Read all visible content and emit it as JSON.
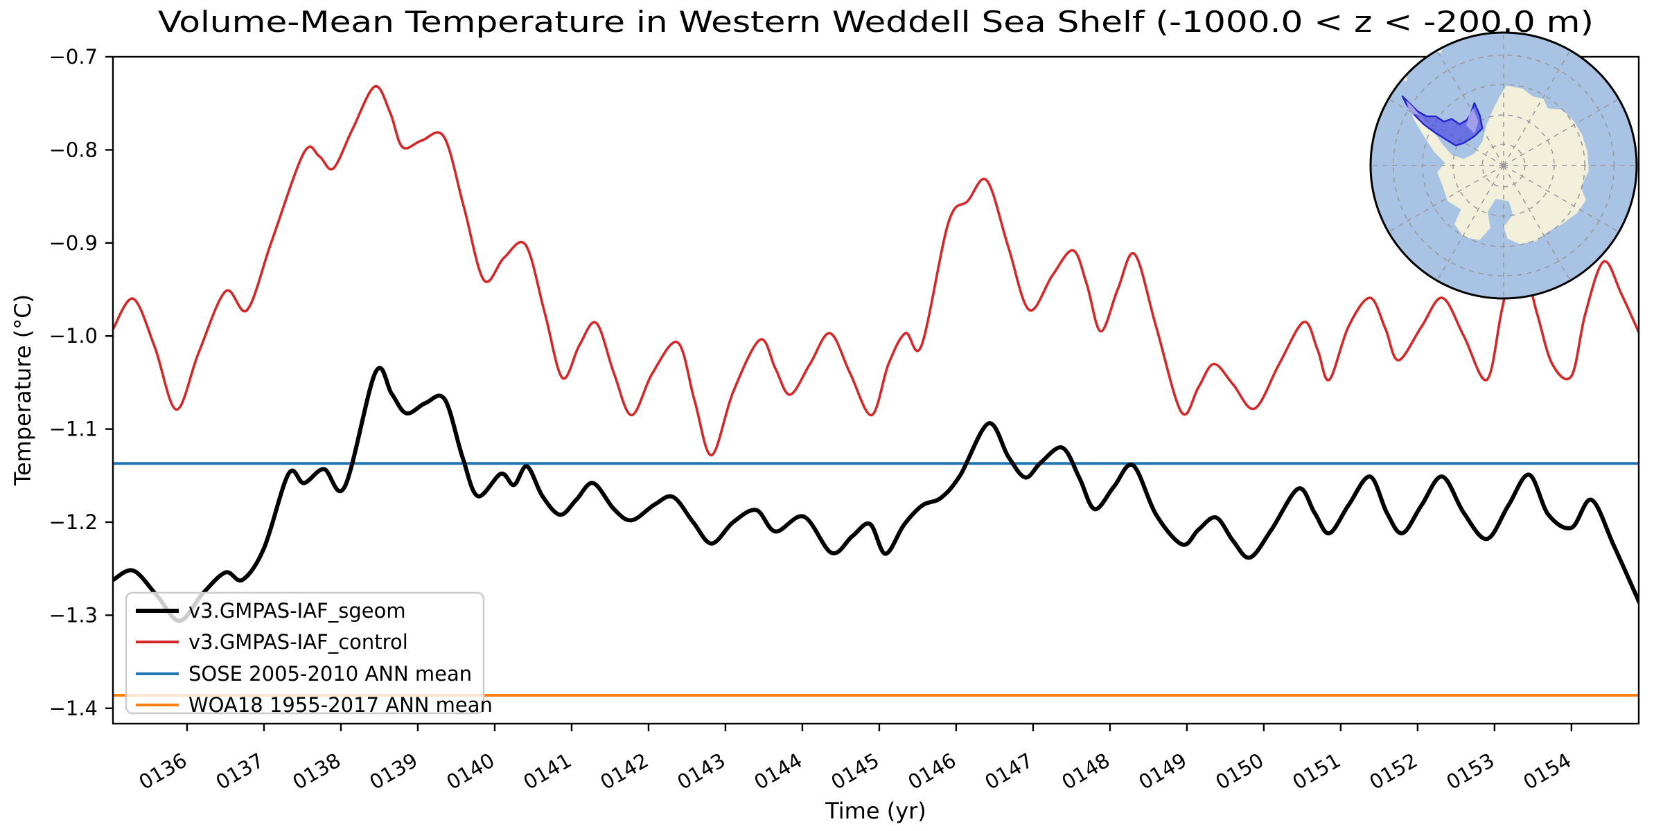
{
  "chart_data": {
    "type": "line",
    "title": "Volume-Mean Temperature in Western Weddell Sea Shelf (-1000.0 < z < -200.0 m)",
    "xlabel": "Time (yr)",
    "ylabel": "Temperature (°C)",
    "xlim": [
      135.036,
      154.875
    ],
    "ylim": [
      -1.4165,
      -0.7
    ],
    "grid": false,
    "legend_position": "lower left",
    "xticks": {
      "values": [
        136,
        137,
        138,
        139,
        140,
        141,
        142,
        143,
        144,
        145,
        146,
        147,
        148,
        149,
        150,
        151,
        152,
        153,
        154
      ],
      "labels": [
        "0136",
        "0137",
        "0138",
        "0139",
        "0140",
        "0141",
        "0142",
        "0143",
        "0144",
        "0145",
        "0146",
        "0147",
        "0148",
        "0149",
        "0150",
        "0151",
        "0152",
        "0153",
        "0154"
      ]
    },
    "yticks": {
      "values": [
        -0.7,
        -0.8,
        -0.9,
        -1.0,
        -1.1,
        -1.2,
        -1.3,
        -1.4
      ],
      "labels": [
        "−0.7",
        "−0.8",
        "−0.9",
        "−1.0",
        "−1.1",
        "−1.2",
        "−1.3",
        "−1.4"
      ]
    },
    "series": [
      {
        "name": "v3.GMPAS-IAF_sgeom",
        "color": "#000000",
        "linewidth": 6,
        "points": [
          [
            135.04,
            -1.262
          ],
          [
            135.3,
            -1.252
          ],
          [
            135.6,
            -1.278
          ],
          [
            135.9,
            -1.306
          ],
          [
            136.2,
            -1.277
          ],
          [
            136.5,
            -1.254
          ],
          [
            136.72,
            -1.262
          ],
          [
            137.0,
            -1.228
          ],
          [
            137.32,
            -1.148
          ],
          [
            137.52,
            -1.158
          ],
          [
            137.78,
            -1.143
          ],
          [
            138.05,
            -1.162
          ],
          [
            138.45,
            -1.039
          ],
          [
            138.66,
            -1.062
          ],
          [
            138.85,
            -1.083
          ],
          [
            139.1,
            -1.072
          ],
          [
            139.35,
            -1.068
          ],
          [
            139.58,
            -1.13
          ],
          [
            139.78,
            -1.172
          ],
          [
            140.08,
            -1.148
          ],
          [
            140.25,
            -1.16
          ],
          [
            140.42,
            -1.14
          ],
          [
            140.62,
            -1.172
          ],
          [
            140.85,
            -1.192
          ],
          [
            141.06,
            -1.176
          ],
          [
            141.28,
            -1.158
          ],
          [
            141.55,
            -1.186
          ],
          [
            141.78,
            -1.198
          ],
          [
            142.08,
            -1.181
          ],
          [
            142.32,
            -1.173
          ],
          [
            142.58,
            -1.2
          ],
          [
            142.82,
            -1.223
          ],
          [
            143.1,
            -1.2
          ],
          [
            143.4,
            -1.187
          ],
          [
            143.65,
            -1.21
          ],
          [
            144.02,
            -1.194
          ],
          [
            144.38,
            -1.233
          ],
          [
            144.65,
            -1.215
          ],
          [
            144.88,
            -1.202
          ],
          [
            145.08,
            -1.234
          ],
          [
            145.32,
            -1.203
          ],
          [
            145.56,
            -1.182
          ],
          [
            145.8,
            -1.174
          ],
          [
            146.05,
            -1.15
          ],
          [
            146.42,
            -1.094
          ],
          [
            146.68,
            -1.13
          ],
          [
            146.9,
            -1.152
          ],
          [
            147.1,
            -1.136
          ],
          [
            147.38,
            -1.12
          ],
          [
            147.6,
            -1.152
          ],
          [
            147.8,
            -1.186
          ],
          [
            148.05,
            -1.162
          ],
          [
            148.3,
            -1.139
          ],
          [
            148.6,
            -1.192
          ],
          [
            148.94,
            -1.224
          ],
          [
            149.15,
            -1.208
          ],
          [
            149.38,
            -1.195
          ],
          [
            149.6,
            -1.22
          ],
          [
            149.82,
            -1.238
          ],
          [
            150.1,
            -1.208
          ],
          [
            150.45,
            -1.164
          ],
          [
            150.66,
            -1.19
          ],
          [
            150.85,
            -1.212
          ],
          [
            151.1,
            -1.182
          ],
          [
            151.38,
            -1.151
          ],
          [
            151.6,
            -1.19
          ],
          [
            151.8,
            -1.212
          ],
          [
            152.05,
            -1.182
          ],
          [
            152.32,
            -1.151
          ],
          [
            152.6,
            -1.19
          ],
          [
            152.9,
            -1.218
          ],
          [
            153.18,
            -1.182
          ],
          [
            153.45,
            -1.149
          ],
          [
            153.7,
            -1.192
          ],
          [
            154.0,
            -1.206
          ],
          [
            154.26,
            -1.176
          ],
          [
            154.55,
            -1.225
          ],
          [
            154.88,
            -1.286
          ]
        ]
      },
      {
        "name": "v3.GMPAS-IAF_control",
        "color": "#d62728",
        "linewidth": 3.6,
        "points": [
          [
            135.04,
            -0.992
          ],
          [
            135.3,
            -0.96
          ],
          [
            135.58,
            -1.012
          ],
          [
            135.86,
            -1.079
          ],
          [
            136.15,
            -1.018
          ],
          [
            136.5,
            -0.952
          ],
          [
            136.78,
            -0.972
          ],
          [
            137.1,
            -0.898
          ],
          [
            137.52,
            -0.803
          ],
          [
            137.72,
            -0.807
          ],
          [
            137.9,
            -0.82
          ],
          [
            138.15,
            -0.778
          ],
          [
            138.44,
            -0.732
          ],
          [
            138.64,
            -0.76
          ],
          [
            138.8,
            -0.797
          ],
          [
            139.05,
            -0.79
          ],
          [
            139.34,
            -0.786
          ],
          [
            139.6,
            -0.862
          ],
          [
            139.86,
            -0.94
          ],
          [
            140.12,
            -0.916
          ],
          [
            140.4,
            -0.902
          ],
          [
            140.65,
            -0.975
          ],
          [
            140.88,
            -1.045
          ],
          [
            141.1,
            -1.01
          ],
          [
            141.32,
            -0.986
          ],
          [
            141.55,
            -1.04
          ],
          [
            141.78,
            -1.085
          ],
          [
            142.05,
            -1.04
          ],
          [
            142.38,
            -1.007
          ],
          [
            142.6,
            -1.07
          ],
          [
            142.82,
            -1.128
          ],
          [
            143.1,
            -1.06
          ],
          [
            143.45,
            -1.004
          ],
          [
            143.65,
            -1.035
          ],
          [
            143.84,
            -1.063
          ],
          [
            144.1,
            -1.03
          ],
          [
            144.36,
            -0.997
          ],
          [
            144.62,
            -1.04
          ],
          [
            144.9,
            -1.085
          ],
          [
            145.12,
            -1.03
          ],
          [
            145.34,
            -0.997
          ],
          [
            145.55,
            -1.01
          ],
          [
            145.9,
            -0.878
          ],
          [
            146.15,
            -0.855
          ],
          [
            146.4,
            -0.833
          ],
          [
            146.68,
            -0.905
          ],
          [
            146.95,
            -0.972
          ],
          [
            147.25,
            -0.935
          ],
          [
            147.52,
            -0.908
          ],
          [
            147.7,
            -0.945
          ],
          [
            147.88,
            -0.995
          ],
          [
            148.1,
            -0.95
          ],
          [
            148.32,
            -0.912
          ],
          [
            148.6,
            -0.99
          ],
          [
            148.93,
            -1.082
          ],
          [
            149.15,
            -1.055
          ],
          [
            149.35,
            -1.03
          ],
          [
            149.6,
            -1.052
          ],
          [
            149.88,
            -1.078
          ],
          [
            150.2,
            -1.03
          ],
          [
            150.52,
            -0.985
          ],
          [
            150.7,
            -1.015
          ],
          [
            150.85,
            -1.047
          ],
          [
            151.1,
            -0.99
          ],
          [
            151.38,
            -0.959
          ],
          [
            151.58,
            -0.992
          ],
          [
            151.75,
            -1.026
          ],
          [
            152.05,
            -0.99
          ],
          [
            152.32,
            -0.959
          ],
          [
            152.6,
            -1.0
          ],
          [
            152.9,
            -1.047
          ],
          [
            153.1,
            -0.97
          ],
          [
            153.3,
            -0.905
          ],
          [
            153.55,
            -0.975
          ],
          [
            153.75,
            -1.03
          ],
          [
            154.0,
            -1.043
          ],
          [
            154.18,
            -0.976
          ],
          [
            154.42,
            -0.92
          ],
          [
            154.65,
            -0.955
          ],
          [
            154.88,
            -0.997
          ]
        ]
      },
      {
        "name": "SOSE 2005-2010 ANN mean",
        "color": "#1f77b4",
        "linewidth": 4,
        "type": "hline",
        "y": -1.137
      },
      {
        "name": "WOA18 1955-2017 ANN mean",
        "color": "#ff7f0e",
        "linewidth": 4,
        "type": "hline",
        "y": -1.386
      }
    ]
  },
  "inset_map": {
    "description": "South polar stereographic map of Antarctica with the Western Weddell Sea shelf region highlighted",
    "ocean_color": "#a9c3e5",
    "land_color": "#f2efdb",
    "region_fill": "#4040e0",
    "region_fill_opacity": 0.62,
    "region_edge": "#2727cc",
    "region_light_patch": "#a9a4ec",
    "graticule_color": "#999999",
    "rim_color": "#000000"
  }
}
